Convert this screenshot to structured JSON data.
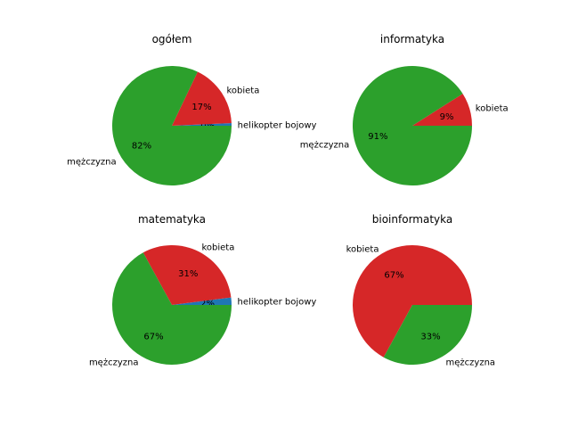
{
  "chart_data": [
    {
      "type": "pie",
      "title": "ogółem",
      "slices": [
        {
          "label": "helikopter bojowy",
          "value": 0.7,
          "pct": "0%",
          "color": "#1f77b4"
        },
        {
          "label": "kobieta",
          "value": 17.2,
          "pct": "17%",
          "color": "#d62728"
        },
        {
          "label": "mężczyzna",
          "value": 82.1,
          "pct": "82%",
          "color": "#2ca02c"
        }
      ]
    },
    {
      "type": "pie",
      "title": "informatyka",
      "slices": [
        {
          "label": "kobieta",
          "value": 9,
          "pct": "9%",
          "color": "#d62728"
        },
        {
          "label": "mężczyzna",
          "value": 91,
          "pct": "91%",
          "color": "#2ca02c"
        }
      ]
    },
    {
      "type": "pie",
      "title": "matematyka",
      "slices": [
        {
          "label": "helikopter bojowy",
          "value": 2,
          "pct": "2%",
          "color": "#1f77b4"
        },
        {
          "label": "kobieta",
          "value": 31,
          "pct": "31%",
          "color": "#d62728"
        },
        {
          "label": "mężczyzna",
          "value": 67,
          "pct": "67%",
          "color": "#2ca02c"
        }
      ]
    },
    {
      "type": "pie",
      "title": "bioinformatyka",
      "slices": [
        {
          "label": "kobieta",
          "value": 67,
          "pct": "67%",
          "color": "#d62728"
        },
        {
          "label": "mężczyzna",
          "value": 33,
          "pct": "33%",
          "color": "#2ca02c"
        }
      ]
    }
  ]
}
